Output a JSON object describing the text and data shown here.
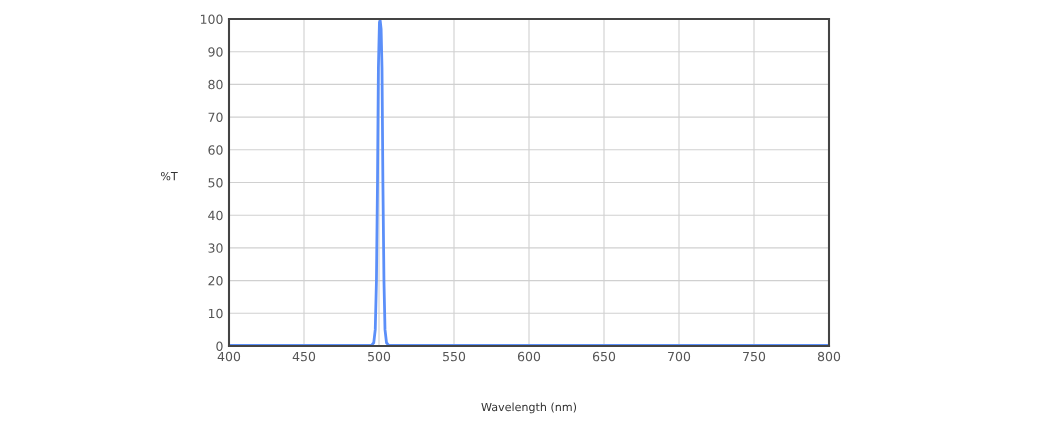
{
  "chart_data": {
    "type": "line",
    "xlabel": "Wavelength (nm)",
    "ylabel": "%T",
    "xlim": [
      400,
      800
    ],
    "ylim": [
      0,
      100
    ],
    "xticks": [
      400,
      450,
      500,
      550,
      600,
      650,
      700,
      750,
      800
    ],
    "yticks": [
      0,
      10,
      20,
      30,
      40,
      50,
      60,
      70,
      80,
      90,
      100
    ],
    "grid": true,
    "marker": "none",
    "line_style": "solid",
    "series": [
      {
        "color": "#5b8ff9",
        "x": [
          400,
          495,
          496.5,
          497.5,
          498.3,
          499,
          499.6,
          500.3,
          500.8,
          501.4,
          502,
          502.6,
          503.3,
          504,
          505,
          506.5,
          800
        ],
        "values": [
          0.2,
          0.2,
          1,
          5,
          20,
          50,
          85,
          99,
          99.5,
          97,
          85,
          50,
          20,
          5,
          1,
          0.2,
          0.2
        ]
      }
    ]
  }
}
